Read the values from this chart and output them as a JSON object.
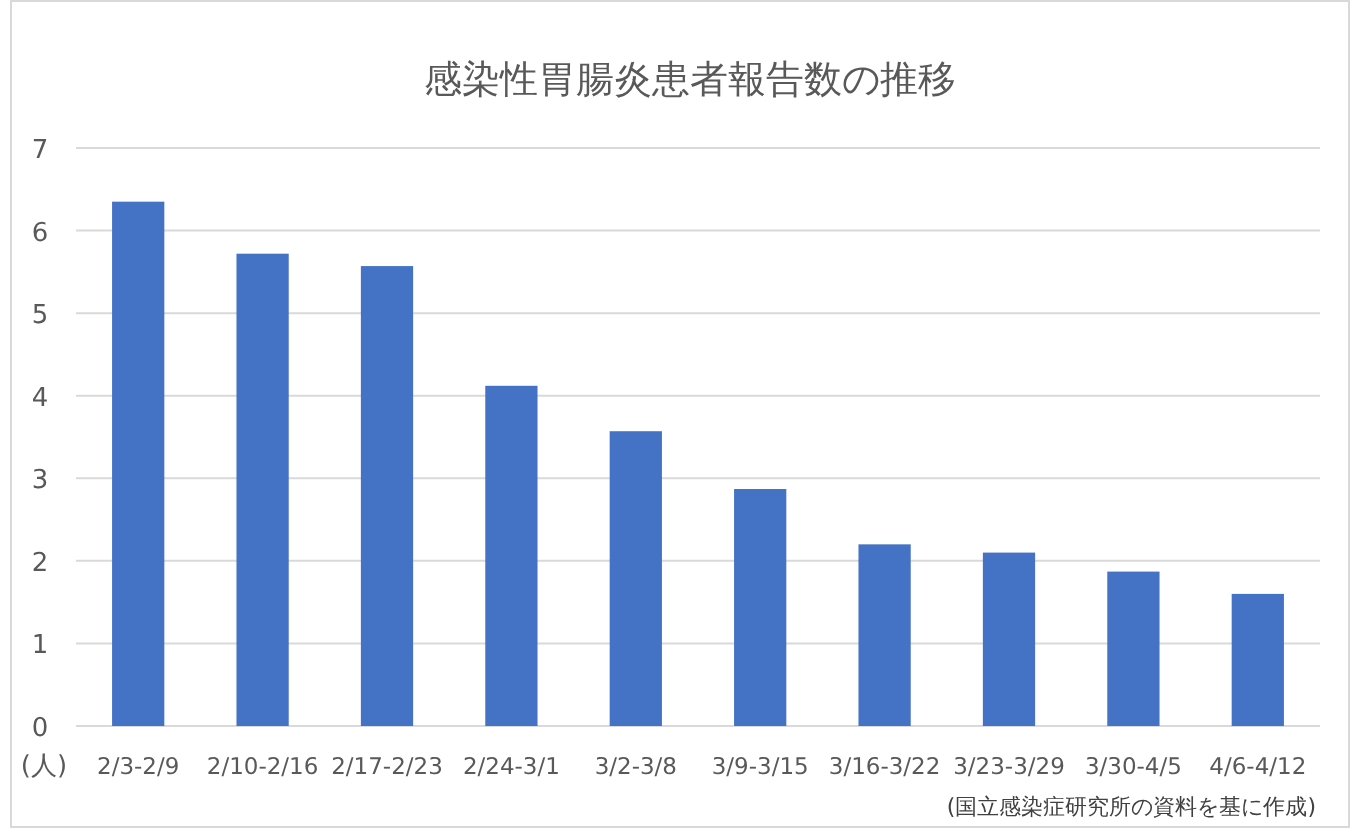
{
  "chart_data": {
    "type": "bar",
    "title": "感染性胃腸炎患者報告数の推移",
    "ylabel": "(人)",
    "categories": [
      "2/3-2/9",
      "2/10-2/16",
      "2/17-2/23",
      "2/24-3/1",
      "3/2-3/8",
      "3/9-3/15",
      "3/16-3/22",
      "3/23-3/29",
      "3/30-4/5",
      "4/6-4/12"
    ],
    "values": [
      6.35,
      5.72,
      5.57,
      4.12,
      3.57,
      2.87,
      2.2,
      2.1,
      1.87,
      1.6
    ],
    "color": "#4472c4",
    "ylim": [
      0,
      7
    ],
    "yticks": [
      0,
      1,
      2,
      3,
      4,
      5,
      6,
      7
    ],
    "grid": "y",
    "annotations": [
      "(国立感染症研究所の資料を基に作成)"
    ]
  }
}
